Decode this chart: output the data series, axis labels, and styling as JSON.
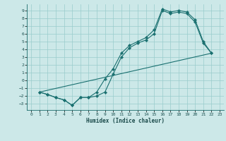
{
  "title": "",
  "xlabel": "Humidex (Indice chaleur)",
  "bg_color": "#cce8e8",
  "grid_color": "#99cccc",
  "line_color": "#1a7070",
  "xlim": [
    -0.5,
    23.5
  ],
  "ylim": [
    -3.8,
    9.8
  ],
  "xticks": [
    0,
    1,
    2,
    3,
    4,
    5,
    6,
    7,
    8,
    9,
    10,
    11,
    12,
    13,
    14,
    15,
    16,
    17,
    18,
    19,
    20,
    21,
    22,
    23
  ],
  "yticks": [
    -3,
    -2,
    -1,
    0,
    1,
    2,
    3,
    4,
    5,
    6,
    7,
    8,
    9
  ],
  "line1_x": [
    1,
    2,
    3,
    4,
    5,
    6,
    7,
    8,
    9,
    10,
    11,
    12,
    13,
    14,
    15,
    16,
    17,
    18,
    19,
    20,
    21,
    22
  ],
  "line1_y": [
    -1.5,
    -1.8,
    -2.2,
    -2.5,
    -3.2,
    -2.2,
    -2.2,
    -1.5,
    0.2,
    1.5,
    3.5,
    4.5,
    5.0,
    5.5,
    6.5,
    9.2,
    8.8,
    9.0,
    8.8,
    7.8,
    5.0,
    3.5
  ],
  "line2_x": [
    1,
    2,
    3,
    4,
    5,
    6,
    7,
    8,
    9,
    10,
    11,
    12,
    13,
    14,
    15,
    16,
    17,
    18,
    19,
    20,
    21,
    22
  ],
  "line2_y": [
    -1.5,
    -1.8,
    -2.2,
    -2.5,
    -3.2,
    -2.2,
    -2.2,
    -2.0,
    -1.5,
    0.8,
    3.0,
    4.2,
    4.8,
    5.2,
    6.0,
    9.0,
    8.6,
    8.8,
    8.6,
    7.5,
    4.8,
    3.5
  ],
  "line3_x": [
    1,
    22
  ],
  "line3_y": [
    -1.5,
    3.5
  ]
}
